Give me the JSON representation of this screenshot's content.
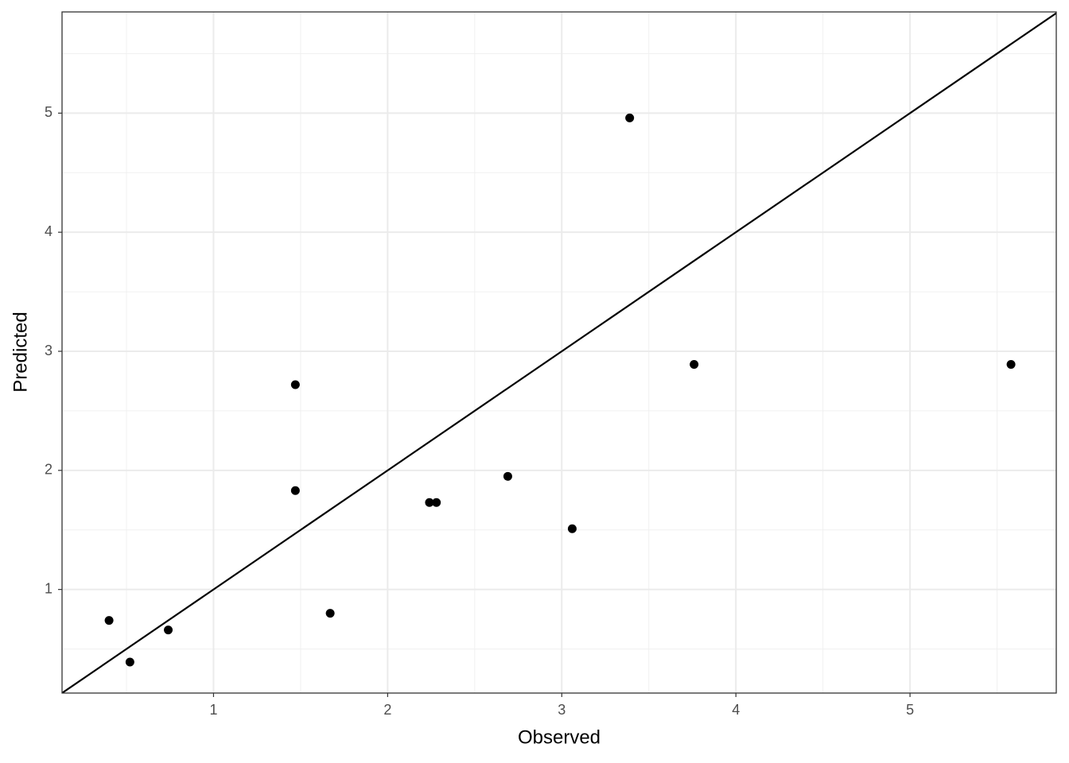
{
  "chart_data": {
    "type": "scatter",
    "x_label": "Observed",
    "y_label": "Predicted",
    "x": [
      0.4,
      0.52,
      0.74,
      1.47,
      1.47,
      1.67,
      2.24,
      2.28,
      2.69,
      3.06,
      3.39,
      3.76,
      5.58
    ],
    "values": [
      0.74,
      0.39,
      0.66,
      2.72,
      1.83,
      0.8,
      1.73,
      1.73,
      1.95,
      1.51,
      4.96,
      2.89,
      2.89
    ],
    "color": "#000000",
    "xlim": [
      0.13,
      5.84
    ],
    "ylim": [
      0.13,
      5.85
    ],
    "xticks": [
      1,
      2,
      3,
      4,
      5
    ],
    "yticks": [
      1,
      2,
      3,
      4,
      5
    ],
    "minor_xticks": [
      0.5,
      1.5,
      2.5,
      3.5,
      4.5,
      5.5
    ],
    "minor_yticks": [
      0.5,
      1.5,
      2.5,
      3.5,
      4.5,
      5.5
    ],
    "grid": true,
    "reference_line": {
      "slope": 1,
      "intercept": 0
    }
  }
}
